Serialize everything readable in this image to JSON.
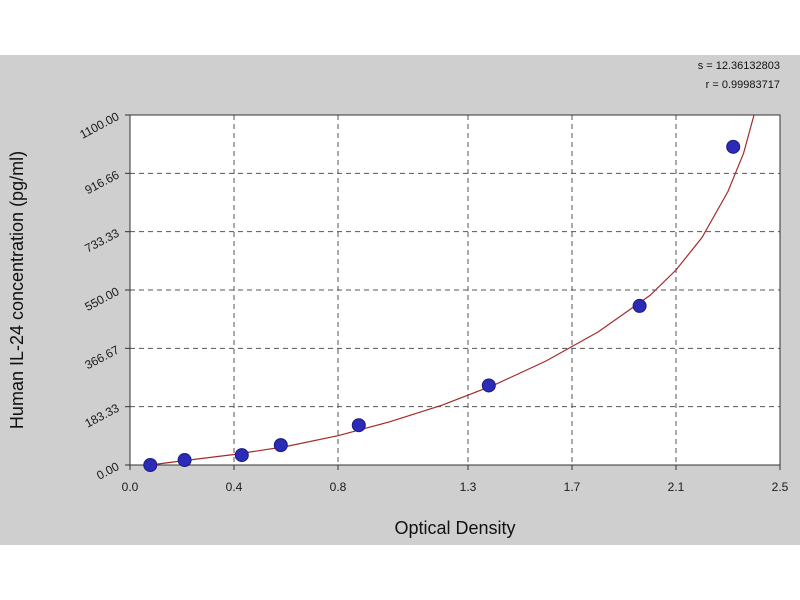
{
  "colors": {
    "panel_bg": "#cfcfcf",
    "plot_bg": "#ffffff",
    "grid": "#555555",
    "curve": "#a52a2a",
    "point": "#2b2bb8",
    "point_edge": "#1a1a80"
  },
  "stats": {
    "s_text": "s = 12.36132803",
    "r_text": "r = 0.99983717"
  },
  "chart_data": {
    "type": "scatter",
    "title": "",
    "xlabel": "Optical Density",
    "ylabel": "Human IL-24 concentration (pg/ml)",
    "xlim": [
      0.0,
      2.5
    ],
    "ylim": [
      0.0,
      1100.0
    ],
    "grid": true,
    "x_ticks": [
      0.0,
      0.4,
      0.8,
      1.3,
      1.7,
      2.1,
      2.5
    ],
    "x_tick_labels": [
      "0.0",
      "0.4",
      "0.8",
      "1.3",
      "1.7",
      "2.1",
      "2.5"
    ],
    "y_ticks": [
      0.0,
      183.33,
      366.67,
      550.0,
      733.33,
      916.66,
      1100.0
    ],
    "y_tick_labels": [
      "0.00",
      "183.33",
      "366.67",
      "550.00",
      "733.33",
      "916.66",
      "1100.00"
    ],
    "series": [
      {
        "points": [
          {
            "x": 0.078,
            "y": 0
          },
          {
            "x": 0.21,
            "y": 15.6
          },
          {
            "x": 0.43,
            "y": 31.2
          },
          {
            "x": 0.58,
            "y": 62.5
          },
          {
            "x": 0.88,
            "y": 125
          },
          {
            "x": 1.38,
            "y": 250
          },
          {
            "x": 1.96,
            "y": 500
          },
          {
            "x": 2.32,
            "y": 1000
          }
        ]
      }
    ],
    "fit_curve": {
      "x": [
        0.078,
        0.2,
        0.4,
        0.6,
        0.8,
        1.0,
        1.2,
        1.4,
        1.6,
        1.8,
        2.0,
        2.1,
        2.2,
        2.3,
        2.36,
        2.4
      ],
      "y": [
        0,
        13,
        33,
        58,
        92,
        136,
        188,
        251,
        327,
        418,
        533,
        613,
        715,
        860,
        980,
        1100
      ]
    }
  }
}
